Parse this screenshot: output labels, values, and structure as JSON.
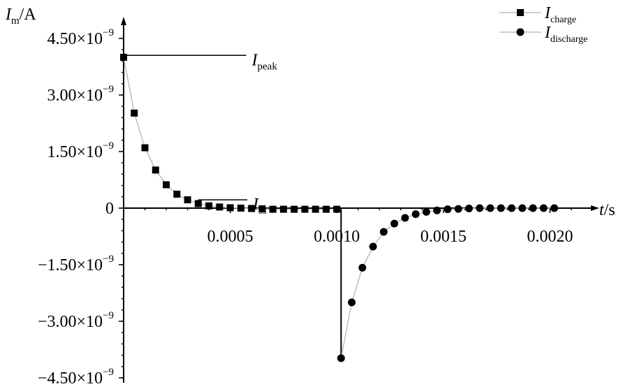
{
  "chart_data": {
    "type": "scatter",
    "x_unit_label": {
      "var": "t",
      "rest": "/s"
    },
    "y_unit_label": {
      "var": "I",
      "sub": "m",
      "rest": "/A"
    },
    "xlim": [
      0,
      0.00215
    ],
    "ylim": [
      -4.5e-09,
      4.5e-09
    ],
    "x_ticks": [
      {
        "value": 0.0005,
        "label": "0.0005"
      },
      {
        "value": 0.001,
        "label": "0.0010"
      },
      {
        "value": 0.0015,
        "label": "0.0015"
      },
      {
        "value": 0.002,
        "label": "0.0020"
      }
    ],
    "y_ticks": [
      {
        "value": 4.5e-09,
        "mantissa": "4.50",
        "exp": "−9"
      },
      {
        "value": 3e-09,
        "mantissa": "3.00",
        "exp": "−9"
      },
      {
        "value": 1.5e-09,
        "mantissa": "1.50",
        "exp": "−9"
      },
      {
        "value": 0,
        "mantissa": "0",
        "exp": ""
      },
      {
        "value": -1.5e-09,
        "mantissa": "−1.50",
        "exp": "−9"
      },
      {
        "value": -3e-09,
        "mantissa": "−3.00",
        "exp": "−9"
      },
      {
        "value": -4.5e-09,
        "mantissa": "−4.50",
        "exp": "−9"
      }
    ],
    "times_symbol": "×10",
    "series": [
      {
        "name": {
          "main": "I",
          "sub": "charge"
        },
        "marker": "square",
        "x": [
          0.0,
          5e-05,
          0.0001,
          0.00015,
          0.0002,
          0.00025,
          0.0003,
          0.00035,
          0.0004,
          0.00045,
          0.0005,
          0.00055,
          0.0006,
          0.00065,
          0.0007,
          0.00075,
          0.0008,
          0.00085,
          0.0009,
          0.00095,
          0.001
        ],
        "y": [
          4e-09,
          2.52e-09,
          1.6e-09,
          1.01e-09,
          6.2e-10,
          3.7e-10,
          2.2e-10,
          1.2e-10,
          6e-11,
          3e-11,
          1e-11,
          0.0,
          -1e-11,
          -2e-11,
          -3e-11,
          -3e-11,
          -3e-11,
          -3e-11,
          -3e-11,
          -3e-11,
          -3e-11
        ]
      },
      {
        "name": {
          "main": "I",
          "sub": "discharge"
        },
        "marker": "circle",
        "x": [
          0.00102,
          0.00107,
          0.00112,
          0.00117,
          0.00122,
          0.00127,
          0.00132,
          0.00137,
          0.00142,
          0.00147,
          0.00152,
          0.00157,
          0.00162,
          0.00167,
          0.00172,
          0.00177,
          0.00182,
          0.00187,
          0.00192,
          0.00197,
          0.00202
        ],
        "y": [
          -3.98e-09,
          -2.5e-09,
          -1.58e-09,
          -1.02e-09,
          -6.3e-10,
          -4.1e-10,
          -2.6e-10,
          -1.6e-10,
          -1e-10,
          -6e-11,
          -3e-11,
          -2e-11,
          -1e-11,
          0.0,
          0.0,
          0.0,
          0.0,
          0.0,
          0.0,
          0.0,
          0.0
        ]
      }
    ],
    "annotations": [
      {
        "id": "peak",
        "main": "I",
        "sub": "peak",
        "y": 4.05e-09,
        "x_end": 0.000575
      },
      {
        "id": "ss",
        "main": "I",
        "sub": "ss",
        "y": 2.2e-10,
        "x_end": 0.00058
      }
    ],
    "legend": {
      "placement": "top-right"
    },
    "drop_line": {
      "x": 0.00102,
      "y_from": 0,
      "y_to": -3.98e-09
    },
    "grid": false
  }
}
